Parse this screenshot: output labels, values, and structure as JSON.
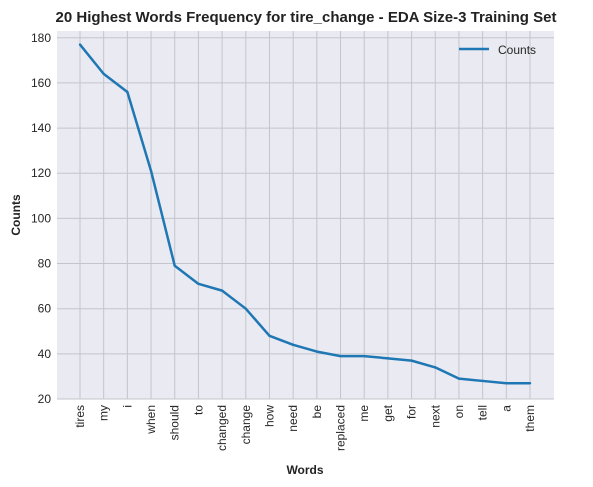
{
  "chart_data": {
    "type": "line",
    "title": "20 Highest Words Frequency for tire_change - EDA Size-3 Training Set",
    "xlabel": "Words",
    "ylabel": "Counts",
    "categories": [
      "tires",
      "my",
      "i",
      "when",
      "should",
      "to",
      "changed",
      "change",
      "how",
      "need",
      "be",
      "replaced",
      "me",
      "get",
      "for",
      "next",
      "on",
      "tell",
      "a",
      "them"
    ],
    "series": [
      {
        "name": "Counts",
        "color": "#1f77b4",
        "values": [
          177,
          164,
          156,
          121,
          79,
          71,
          68,
          60,
          48,
          44,
          41,
          39,
          39,
          38,
          37,
          34,
          29,
          28,
          27,
          27
        ]
      }
    ],
    "ylim": [
      20,
      183
    ],
    "yticks": [
      20,
      40,
      60,
      80,
      100,
      120,
      140,
      160,
      180
    ],
    "grid": true,
    "legend": "top-right"
  }
}
